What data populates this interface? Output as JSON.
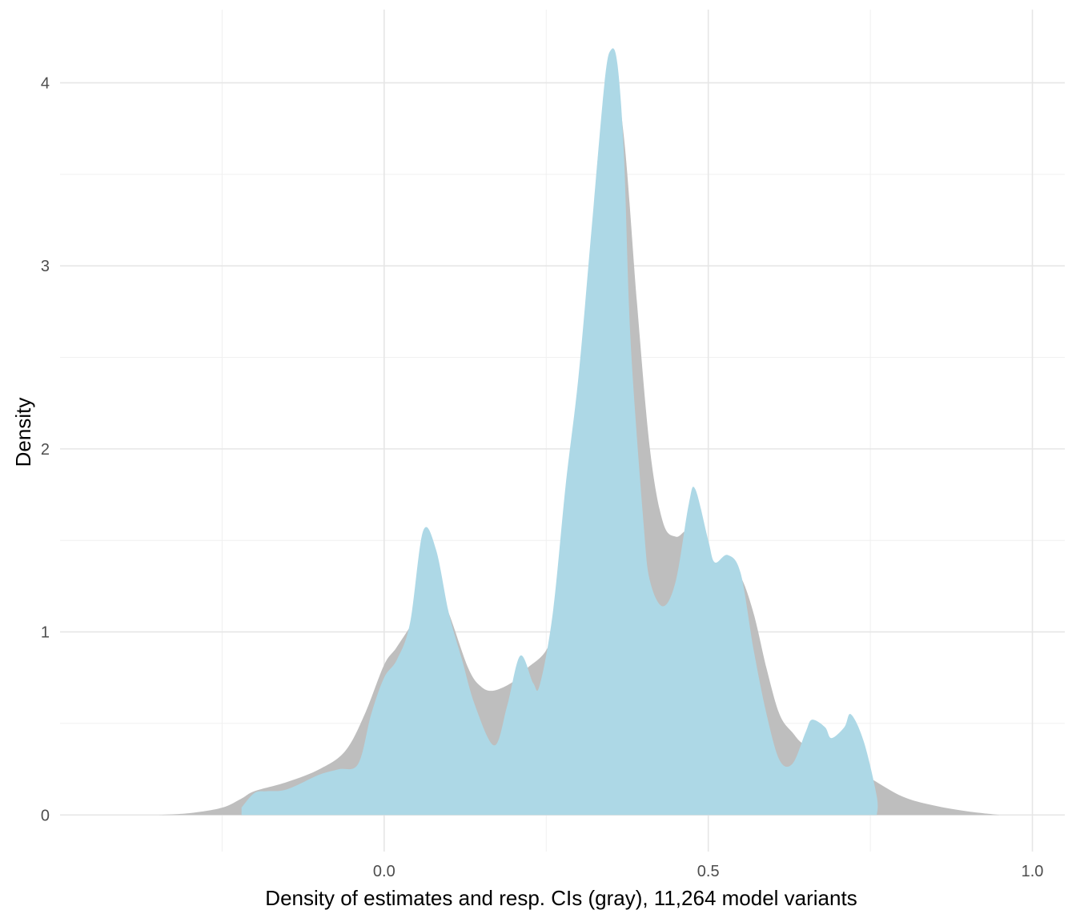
{
  "chart_data": {
    "type": "area",
    "xlabel": "Density of estimates and resp. CIs (gray), 11,264 model variants",
    "ylabel": "Density",
    "xlim": [
      -0.5,
      1.05
    ],
    "ylim": [
      -0.2,
      4.4
    ],
    "x_ticks": [
      0.0,
      0.5,
      1.0
    ],
    "x_tick_labels": [
      "0.0",
      "0.5",
      "1.0"
    ],
    "x_minor_ticks": [
      -0.25,
      0.25,
      0.75
    ],
    "y_ticks": [
      0,
      1,
      2,
      3,
      4
    ],
    "y_tick_labels": [
      "0",
      "1",
      "2",
      "3",
      "4"
    ],
    "y_minor_ticks": [
      0.5,
      1.5,
      2.5,
      3.5
    ],
    "grid": true,
    "legend": "none",
    "series": [
      {
        "color": "#bebebe",
        "x": [
          -0.35,
          -0.3,
          -0.25,
          -0.22,
          -0.2,
          -0.15,
          -0.1,
          -0.06,
          -0.03,
          0.0,
          0.02,
          0.05,
          0.07,
          0.1,
          0.13,
          0.15,
          0.17,
          0.2,
          0.22,
          0.25,
          0.27,
          0.29,
          0.31,
          0.33,
          0.35,
          0.37,
          0.39,
          0.41,
          0.43,
          0.45,
          0.47,
          0.49,
          0.51,
          0.53,
          0.55,
          0.57,
          0.59,
          0.61,
          0.63,
          0.65,
          0.7,
          0.75,
          0.8,
          0.85,
          0.9,
          0.95
        ],
        "y": [
          0.0,
          0.01,
          0.04,
          0.09,
          0.13,
          0.18,
          0.25,
          0.35,
          0.55,
          0.82,
          0.92,
          1.1,
          1.35,
          1.1,
          0.8,
          0.7,
          0.68,
          0.73,
          0.8,
          0.9,
          1.1,
          1.7,
          2.6,
          3.6,
          4.1,
          3.7,
          2.8,
          2.0,
          1.6,
          1.52,
          1.55,
          1.4,
          1.38,
          1.35,
          1.3,
          1.1,
          0.8,
          0.55,
          0.45,
          0.38,
          0.3,
          0.2,
          0.1,
          0.05,
          0.02,
          0.0
        ]
      },
      {
        "color": "#add8e6",
        "x": [
          -0.22,
          -0.2,
          -0.18,
          -0.15,
          -0.1,
          -0.07,
          -0.04,
          -0.02,
          0.0,
          0.02,
          0.04,
          0.06,
          0.08,
          0.1,
          0.12,
          0.14,
          0.17,
          0.19,
          0.21,
          0.23,
          0.24,
          0.26,
          0.28,
          0.3,
          0.32,
          0.34,
          0.35,
          0.36,
          0.37,
          0.38,
          0.4,
          0.41,
          0.43,
          0.45,
          0.47,
          0.48,
          0.5,
          0.51,
          0.53,
          0.55,
          0.57,
          0.59,
          0.61,
          0.63,
          0.65,
          0.66,
          0.68,
          0.69,
          0.71,
          0.72,
          0.74,
          0.76,
          0.76
        ],
        "y": [
          0.04,
          0.12,
          0.13,
          0.14,
          0.22,
          0.25,
          0.28,
          0.55,
          0.75,
          0.85,
          1.05,
          1.55,
          1.45,
          1.1,
          0.85,
          0.6,
          0.38,
          0.6,
          0.87,
          0.72,
          0.71,
          1.1,
          1.8,
          2.4,
          3.2,
          4.0,
          4.18,
          4.1,
          3.6,
          2.6,
          1.6,
          1.28,
          1.14,
          1.28,
          1.7,
          1.78,
          1.5,
          1.38,
          1.42,
          1.32,
          0.9,
          0.55,
          0.3,
          0.28,
          0.45,
          0.52,
          0.48,
          0.42,
          0.48,
          0.55,
          0.4,
          0.1,
          0.0
        ]
      }
    ]
  }
}
